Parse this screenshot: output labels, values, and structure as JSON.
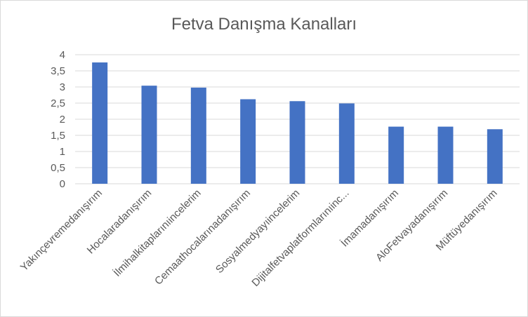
{
  "chart_data": {
    "type": "bar",
    "title": "Fetva Danışma Kanalları",
    "xlabel": "",
    "ylabel": "",
    "categories": [
      "Yakınçevremedanışırım",
      "Hocalaradanışırım",
      "İlmihalkitaplarınıincelerim",
      "Cemaathocalarınadanışırım",
      "Sosyalmedyayıincelerim",
      "Dijitalfetvaplatformlarınıinc...",
      "İmamadanışırım",
      "AloFetvayadanışırım",
      "Müftüyedanışırım"
    ],
    "values": [
      3.76,
      3.04,
      2.98,
      2.62,
      2.56,
      2.49,
      1.77,
      1.77,
      1.69
    ],
    "ylim": [
      0,
      4
    ],
    "yticks": [
      "0",
      "0,5",
      "1",
      "1,5",
      "2",
      "2,5",
      "3",
      "3,5",
      "4"
    ],
    "grid": true,
    "bar_color": "#4472C4",
    "grid_color": "#d9d9d9",
    "legend": "none"
  }
}
